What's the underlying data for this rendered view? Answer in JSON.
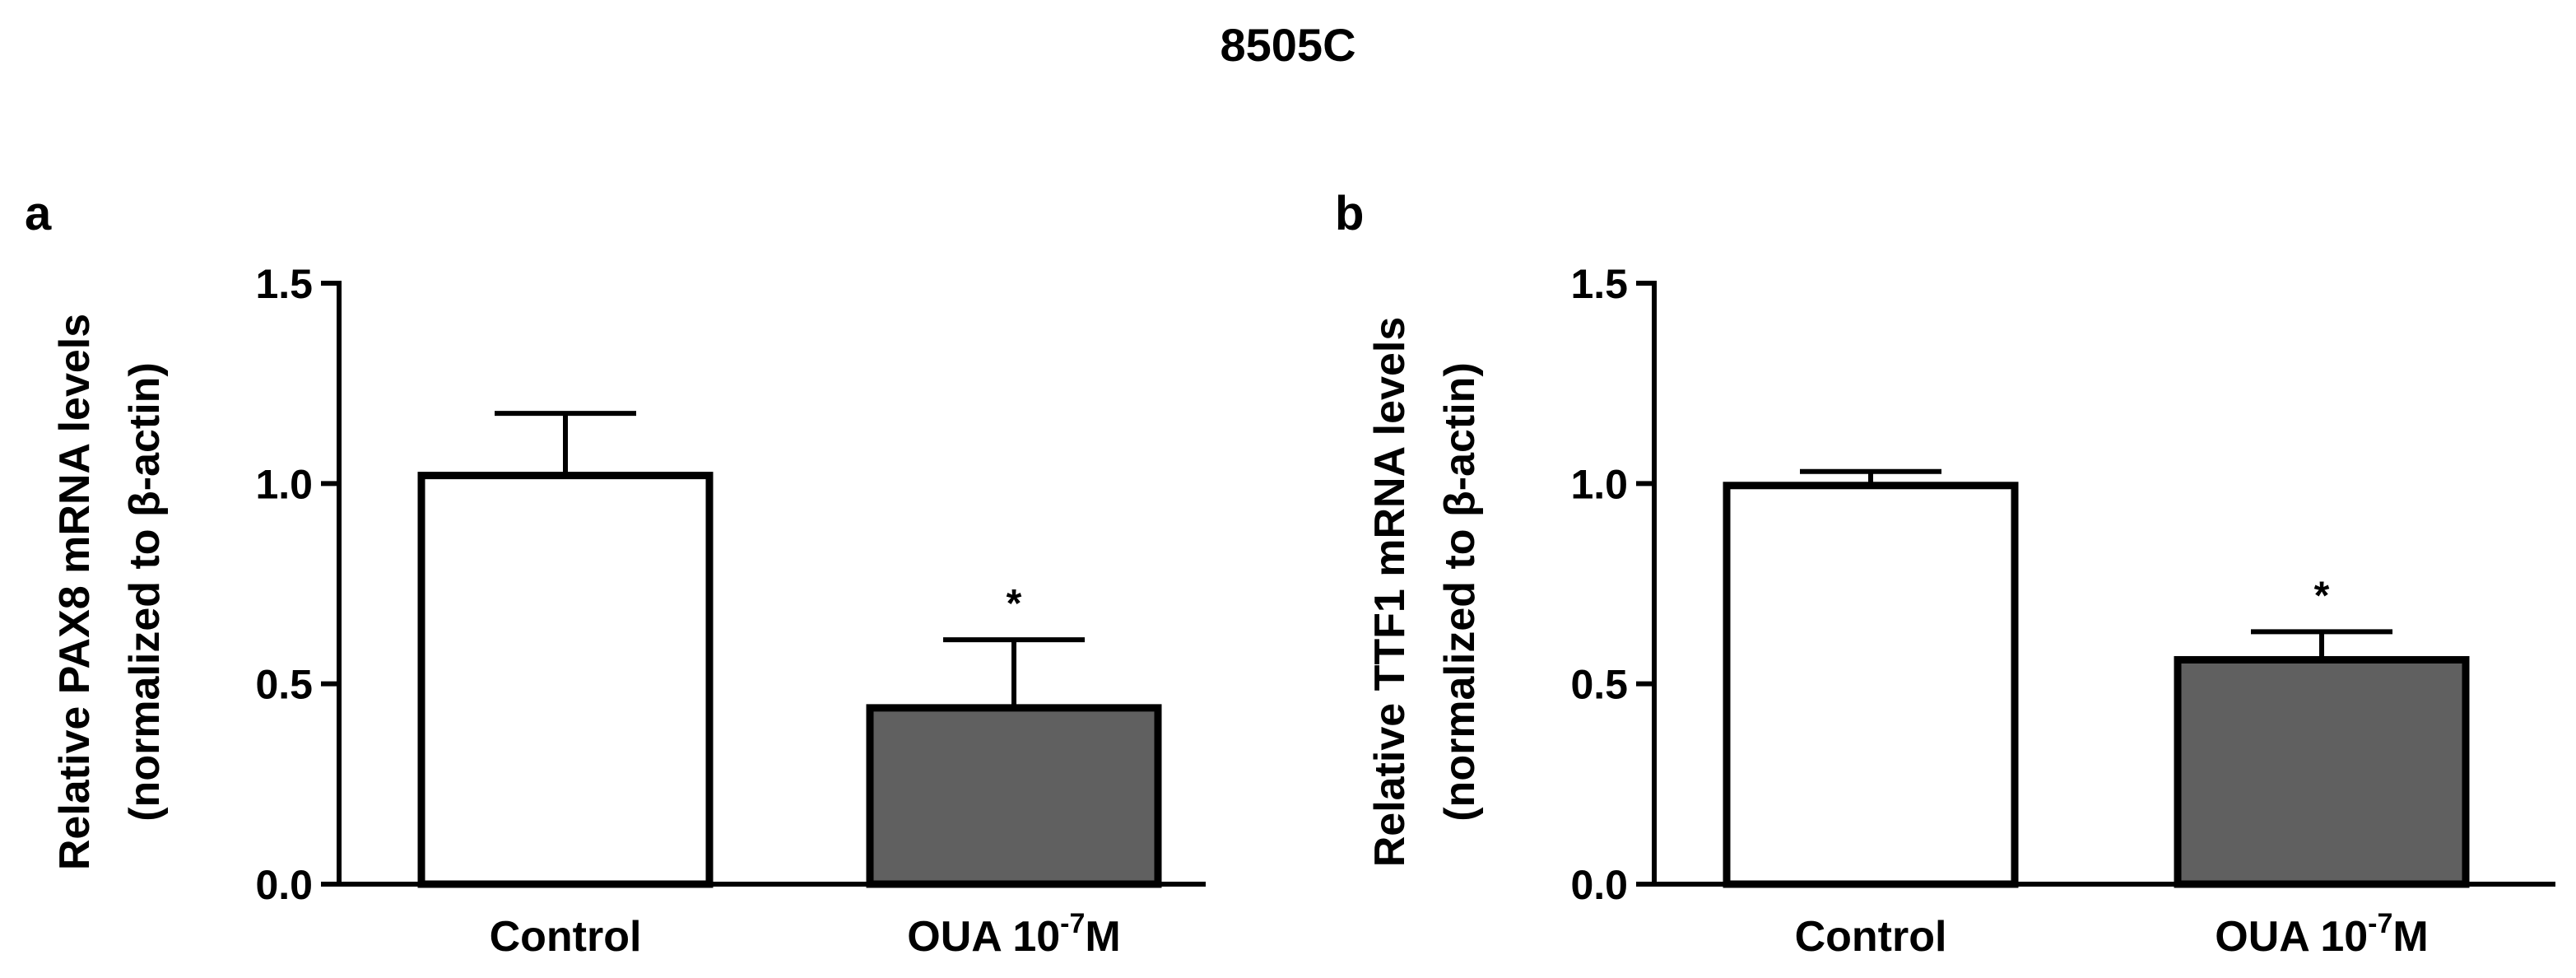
{
  "figure_title": "8505C",
  "chart_data": [
    {
      "panel_label": "a",
      "type": "bar",
      "categories": [
        {
          "label": "Control",
          "superscript": "",
          "suffix": ""
        },
        {
          "label": "OUA 10",
          "superscript": "-7",
          "suffix": "M"
        }
      ],
      "values": [
        1.02,
        0.44
      ],
      "errors": [
        0.155,
        0.17
      ],
      "significance": [
        "",
        "*"
      ],
      "colors": [
        "#ffffff",
        "#606060"
      ],
      "ylabel_line1": "Relative PAX8 mRNA levels",
      "ylabel_line2": "(normalized to β-actin)",
      "ylim": [
        0,
        1.5
      ],
      "yticks": [
        "0.0",
        "0.5",
        "1.0",
        "1.5"
      ]
    },
    {
      "panel_label": "b",
      "type": "bar",
      "categories": [
        {
          "label": "Control",
          "superscript": "",
          "suffix": ""
        },
        {
          "label": "OUA 10",
          "superscript": "-7",
          "suffix": "M"
        }
      ],
      "values": [
        0.995,
        0.56
      ],
      "errors": [
        0.035,
        0.07
      ],
      "significance": [
        "",
        "*"
      ],
      "colors": [
        "#ffffff",
        "#606060"
      ],
      "ylabel_line1": "Relative TTF1 mRNA levels",
      "ylabel_line2": "(normalized to β-actin)",
      "ylim": [
        0,
        1.5
      ],
      "yticks": [
        "0.0",
        "0.5",
        "1.0",
        "1.5"
      ]
    }
  ]
}
